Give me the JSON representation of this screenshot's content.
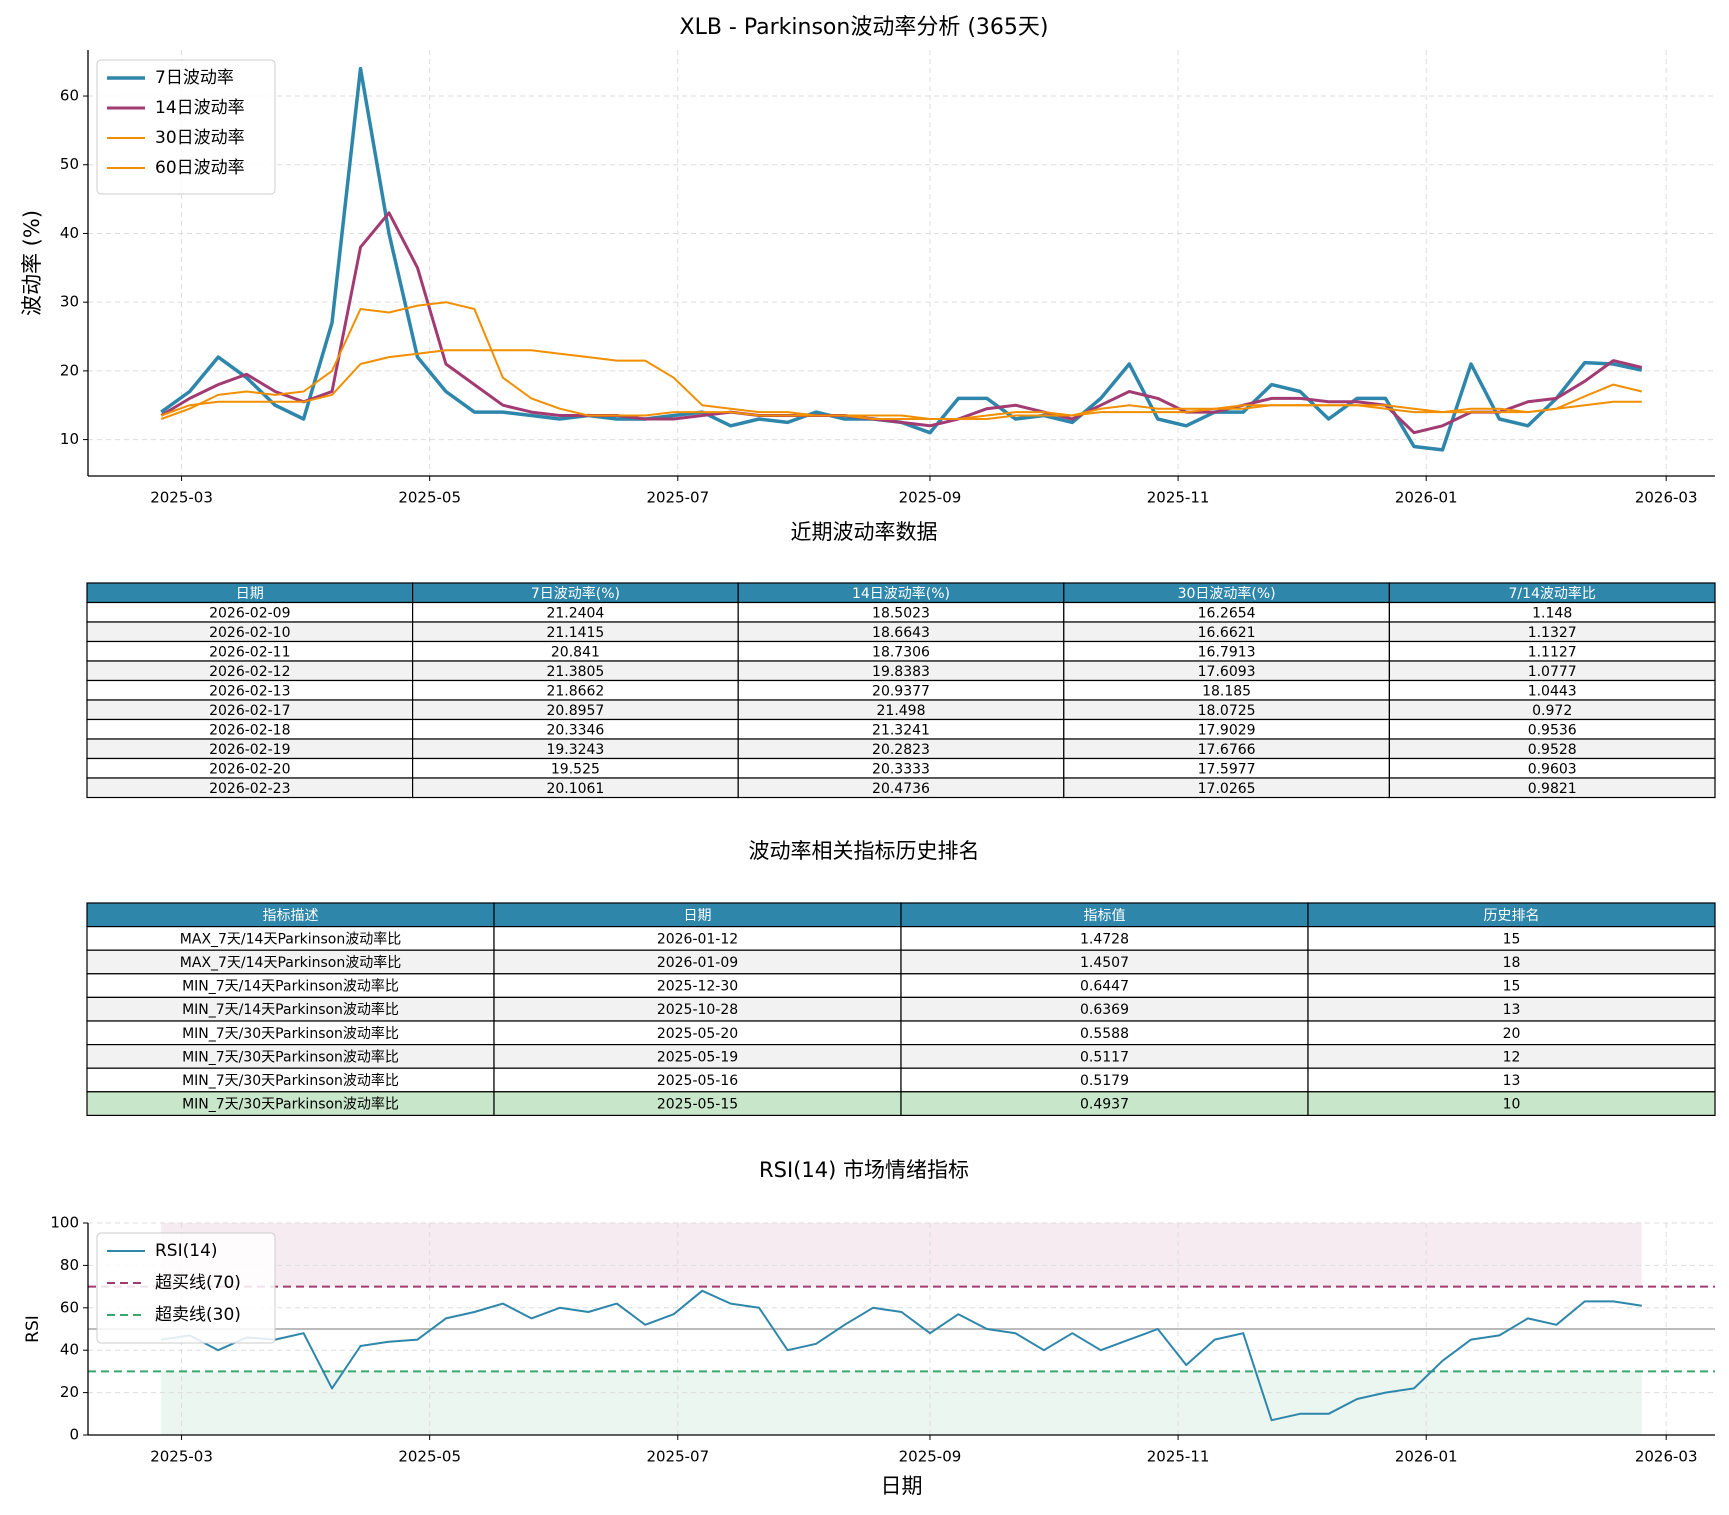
{
  "chart_data": [
    {
      "type": "line",
      "title": "XLB - Parkinson波动率分析 (365天)",
      "ylabel": "波动率 (%)",
      "legend": "upper left",
      "grid": true,
      "xlim": [
        "2025-02-06",
        "2026-03-13"
      ],
      "xticks": [
        "2025-03",
        "2025-05",
        "2025-07",
        "2025-09",
        "2025-11",
        "2026-01",
        "2026-03"
      ],
      "ylim": [
        4.7,
        66.7
      ],
      "yticks": [
        10,
        20,
        30,
        40,
        50,
        60
      ],
      "x": [
        "2025-02-24",
        "2025-03-03",
        "2025-03-10",
        "2025-03-17",
        "2025-03-24",
        "2025-03-31",
        "2025-04-07",
        "2025-04-14",
        "2025-04-21",
        "2025-04-28",
        "2025-05-05",
        "2025-05-12",
        "2025-05-19",
        "2025-05-26",
        "2025-06-02",
        "2025-06-09",
        "2025-06-16",
        "2025-06-23",
        "2025-06-30",
        "2025-07-07",
        "2025-07-14",
        "2025-07-21",
        "2025-07-28",
        "2025-08-04",
        "2025-08-11",
        "2025-08-18",
        "2025-08-25",
        "2025-09-01",
        "2025-09-08",
        "2025-09-15",
        "2025-09-22",
        "2025-09-29",
        "2025-10-06",
        "2025-10-13",
        "2025-10-20",
        "2025-10-27",
        "2025-11-03",
        "2025-11-10",
        "2025-11-17",
        "2025-11-24",
        "2025-12-01",
        "2025-12-08",
        "2025-12-15",
        "2025-12-22",
        "2025-12-29",
        "2026-01-05",
        "2026-01-12",
        "2026-01-19",
        "2026-01-26",
        "2026-02-02",
        "2026-02-09",
        "2026-02-16",
        "2026-02-23"
      ],
      "series": [
        {
          "name": "7日波动率",
          "color": "#2e86ab",
          "linewidth": 3.5,
          "values": [
            14,
            17,
            22,
            19,
            15,
            13,
            27,
            64,
            40,
            22,
            17,
            14,
            14,
            13.5,
            13,
            13.5,
            13,
            13,
            13.5,
            14,
            12,
            13,
            12.5,
            14,
            13,
            13,
            12.5,
            11,
            16,
            16,
            13,
            13.5,
            12.5,
            16,
            21,
            13,
            12,
            14,
            14,
            18,
            17,
            13,
            16,
            16,
            9,
            8.5,
            21,
            13,
            12,
            16,
            21.2,
            21,
            20.1
          ]
        },
        {
          "name": "14日波动率",
          "color": "#a23b72",
          "linewidth": 3,
          "values": [
            13.5,
            16,
            18,
            19.5,
            17,
            15.5,
            17,
            38,
            43,
            35,
            21,
            18,
            15,
            14,
            13.5,
            13.5,
            13.5,
            13,
            13,
            13.5,
            14,
            13.5,
            13.5,
            13.5,
            13.5,
            13,
            12.5,
            12,
            13,
            14.5,
            15,
            14,
            13,
            15,
            17,
            16,
            14,
            14,
            15,
            16,
            16,
            15.5,
            15.5,
            15,
            11,
            12,
            14,
            14,
            15.5,
            16,
            18.5,
            21.5,
            20.5
          ]
        },
        {
          "name": "30日波动率",
          "color": "#f18f01",
          "linewidth": 2,
          "values": [
            13,
            14.5,
            16.5,
            17,
            16.5,
            17,
            20,
            29,
            28.5,
            29.5,
            30,
            29,
            19,
            16,
            14.5,
            13.5,
            13.5,
            13.5,
            14,
            14,
            14,
            13.5,
            13.5,
            13.5,
            13.5,
            13.5,
            13.5,
            13,
            13,
            13.5,
            14,
            14,
            13.5,
            14.5,
            15,
            14.5,
            14.5,
            14.5,
            14.5,
            15,
            15,
            15,
            15,
            15,
            14.5,
            14,
            14.5,
            14.5,
            14,
            14.5,
            16.3,
            18,
            17
          ]
        },
        {
          "name": "60日波动率",
          "color": "#f18f01",
          "linewidth": 2,
          "values": [
            13.5,
            15,
            15.5,
            15.5,
            15.5,
            15.5,
            16.5,
            21,
            22,
            22.5,
            23,
            23,
            23,
            23,
            22.5,
            22,
            21.5,
            21.5,
            19,
            15,
            14.5,
            14,
            14,
            13.5,
            13.5,
            13,
            13,
            13,
            13,
            13,
            13.5,
            13.5,
            13.5,
            14,
            14,
            14,
            14,
            14.5,
            15,
            15,
            15,
            15,
            15,
            14.5,
            14,
            14,
            14,
            14,
            14,
            14.5,
            15,
            15.5,
            15.5
          ]
        }
      ]
    },
    {
      "type": "line",
      "title": "RSI(14) 市场情绪指标",
      "xlabel": "日期",
      "ylabel": "RSI",
      "legend": "upper left",
      "grid": true,
      "xlim": [
        "2025-02-06",
        "2026-03-13"
      ],
      "xticks": [
        "2025-03",
        "2025-05",
        "2025-07",
        "2025-09",
        "2025-11",
        "2026-01",
        "2026-03"
      ],
      "ylim": [
        0,
        100
      ],
      "yticks": [
        0,
        20,
        40,
        60,
        80,
        100
      ],
      "x": [
        "2025-02-24",
        "2025-03-03",
        "2025-03-10",
        "2025-03-17",
        "2025-03-24",
        "2025-03-31",
        "2025-04-07",
        "2025-04-14",
        "2025-04-21",
        "2025-04-28",
        "2025-05-05",
        "2025-05-12",
        "2025-05-19",
        "2025-05-26",
        "2025-06-02",
        "2025-06-09",
        "2025-06-16",
        "2025-06-23",
        "2025-06-30",
        "2025-07-07",
        "2025-07-14",
        "2025-07-21",
        "2025-07-28",
        "2025-08-04",
        "2025-08-11",
        "2025-08-18",
        "2025-08-25",
        "2025-09-01",
        "2025-09-08",
        "2025-09-15",
        "2025-09-22",
        "2025-09-29",
        "2025-10-06",
        "2025-10-13",
        "2025-10-20",
        "2025-10-27",
        "2025-11-03",
        "2025-11-10",
        "2025-11-17",
        "2025-11-24",
        "2025-12-01",
        "2025-12-08",
        "2025-12-15",
        "2025-12-22",
        "2025-12-29",
        "2026-01-05",
        "2026-01-12",
        "2026-01-19",
        "2026-01-26",
        "2026-02-02",
        "2026-02-09",
        "2026-02-16",
        "2026-02-23"
      ],
      "bands": [
        {
          "from": 70,
          "to": 100,
          "color": "#a23b72"
        },
        {
          "from": 0,
          "to": 30,
          "color": "#3aa76d"
        }
      ],
      "series": [
        {
          "name": "RSI(14)",
          "color": "#2e86ab",
          "linewidth": 2,
          "values": [
            45,
            47,
            40,
            46,
            45,
            48,
            22,
            42,
            44,
            45,
            55,
            58,
            62,
            55,
            60,
            58,
            62,
            52,
            57,
            68,
            62,
            60,
            40,
            43,
            52,
            60,
            58,
            48,
            57,
            50,
            48,
            40,
            48,
            40,
            45,
            50,
            33,
            45,
            48,
            7,
            10,
            10,
            17,
            20,
            22,
            35,
            45,
            47,
            55,
            52,
            63,
            63,
            61
          ]
        }
      ],
      "reference_lines": [
        {
          "name": "超买线(70)",
          "value": 70,
          "color": "#a23b72",
          "dashed": true
        },
        {
          "name": "超卖线(30)",
          "value": 30,
          "color": "#3aa76d",
          "dashed": true
        },
        {
          "value": 50,
          "color": "#bbbbbb",
          "dashed": false
        }
      ]
    }
  ],
  "tables": [
    {
      "title": "近期波动率数据",
      "header_color": "#2e86ab",
      "columns": [
        "日期",
        "7日波动率(%)",
        "14日波动率(%)",
        "30日波动率(%)",
        "7/14波动率比"
      ],
      "rows": [
        [
          "2026-02-09",
          21.2404,
          18.5023,
          16.2654,
          1.148
        ],
        [
          "2026-02-10",
          21.1415,
          18.6643,
          16.6621,
          1.1327
        ],
        [
          "2026-02-11",
          20.841,
          18.7306,
          16.7913,
          1.1127
        ],
        [
          "2026-02-12",
          21.3805,
          19.8383,
          17.6093,
          1.0777
        ],
        [
          "2026-02-13",
          21.8662,
          20.9377,
          18.185,
          1.0443
        ],
        [
          "2026-02-17",
          20.8957,
          21.498,
          18.0725,
          0.972
        ],
        [
          "2026-02-18",
          20.3346,
          21.3241,
          17.9029,
          0.9536
        ],
        [
          "2026-02-19",
          19.3243,
          20.2823,
          17.6766,
          0.9528
        ],
        [
          "2026-02-20",
          19.525,
          20.3333,
          17.5977,
          0.9603
        ],
        [
          "2026-02-23",
          20.1061,
          20.4736,
          17.0265,
          0.9821
        ]
      ]
    },
    {
      "title": "波动率相关指标历史排名",
      "header_color": "#2e86ab",
      "highlight_row": 7,
      "highlight_color": "#c8e6c9",
      "columns": [
        "指标描述",
        "日期",
        "指标值",
        "历史排名"
      ],
      "rows": [
        [
          "MAX_7天/14天Parkinson波动率比",
          "2026-01-12",
          1.4728,
          15
        ],
        [
          "MAX_7天/14天Parkinson波动率比",
          "2026-01-09",
          1.4507,
          18
        ],
        [
          "MIN_7天/14天Parkinson波动率比",
          "2025-12-30",
          0.6447,
          15
        ],
        [
          "MIN_7天/14天Parkinson波动率比",
          "2025-10-28",
          0.6369,
          13
        ],
        [
          "MIN_7天/30天Parkinson波动率比",
          "2025-05-20",
          0.5588,
          20
        ],
        [
          "MIN_7天/30天Parkinson波动率比",
          "2025-05-19",
          0.5117,
          12
        ],
        [
          "MIN_7天/30天Parkinson波动率比",
          "2025-05-16",
          0.5179,
          13
        ],
        [
          "MIN_7天/30天Parkinson波动率比",
          "2025-05-15",
          0.4937,
          10
        ]
      ]
    }
  ]
}
